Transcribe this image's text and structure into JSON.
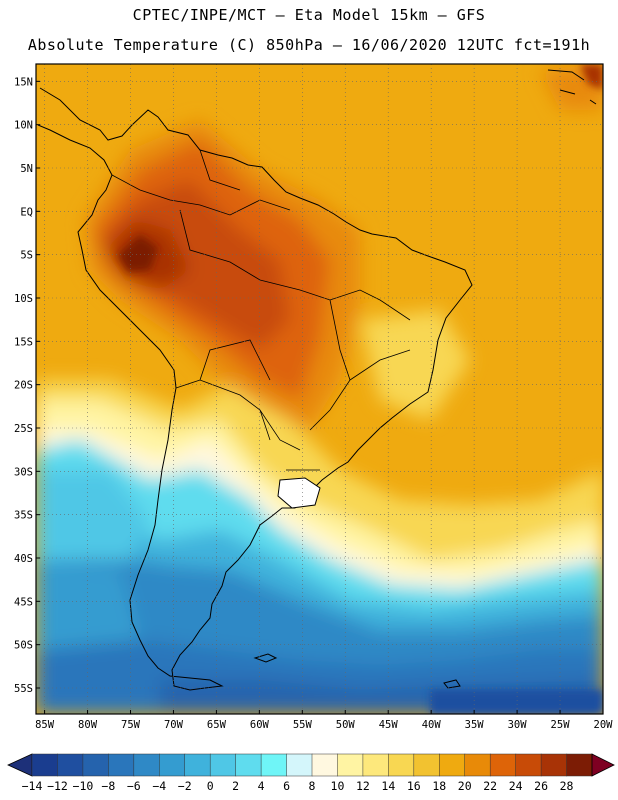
{
  "header": {
    "title_line1": "CPTEC/INPE/MCT –  Eta Model 15km – GFS",
    "title_line2": "Absolute Temperature (C) 850hPa – 16/06/2020 12UTC fct=191h"
  },
  "map": {
    "region": "South America",
    "lat_labels": [
      "15N",
      "10N",
      "5N",
      "EQ",
      "5S",
      "10S",
      "15S",
      "20S",
      "25S",
      "30S",
      "35S",
      "40S",
      "45S",
      "50S",
      "55S"
    ],
    "lat_values": [
      15,
      10,
      5,
      0,
      -5,
      -10,
      -15,
      -20,
      -25,
      -30,
      -35,
      -40,
      -45,
      -50,
      -55
    ],
    "lon_labels": [
      "85W",
      "80W",
      "75W",
      "70W",
      "65W",
      "60W",
      "55W",
      "50W",
      "45W",
      "40W",
      "35W",
      "30W",
      "25W",
      "20W"
    ],
    "lon_values": [
      -85,
      -80,
      -75,
      -70,
      -65,
      -60,
      -55,
      -50,
      -45,
      -40,
      -35,
      -30,
      -25,
      -20
    ],
    "extent": {
      "lon_min": -86,
      "lon_max": -20,
      "lat_min": -58,
      "lat_max": 17
    }
  },
  "colorbar": {
    "tick_labels": [
      "-14",
      "-12",
      "-10",
      "-8",
      "-6",
      "-4",
      "-2",
      "0",
      "2",
      "4",
      "6",
      "8",
      "10",
      "12",
      "14",
      "16",
      "18",
      "20",
      "22",
      "24",
      "26",
      "28"
    ],
    "colors": [
      "#1a3d8f",
      "#1f4fa0",
      "#2563ad",
      "#2a76bb",
      "#2f89c6",
      "#349cd0",
      "#3fb2dc",
      "#4fc7e6",
      "#5fdcee",
      "#6ff5f7",
      "#d4f6fb",
      "#fff8e0",
      "#fff4a3",
      "#fde87c",
      "#f8d752",
      "#f2c230",
      "#efaa10",
      "#e88a08",
      "#de6408",
      "#c84b07",
      "#a83306",
      "#7c1c05"
    ],
    "under_color": "#1d3079",
    "over_color": "#7e0022"
  }
}
